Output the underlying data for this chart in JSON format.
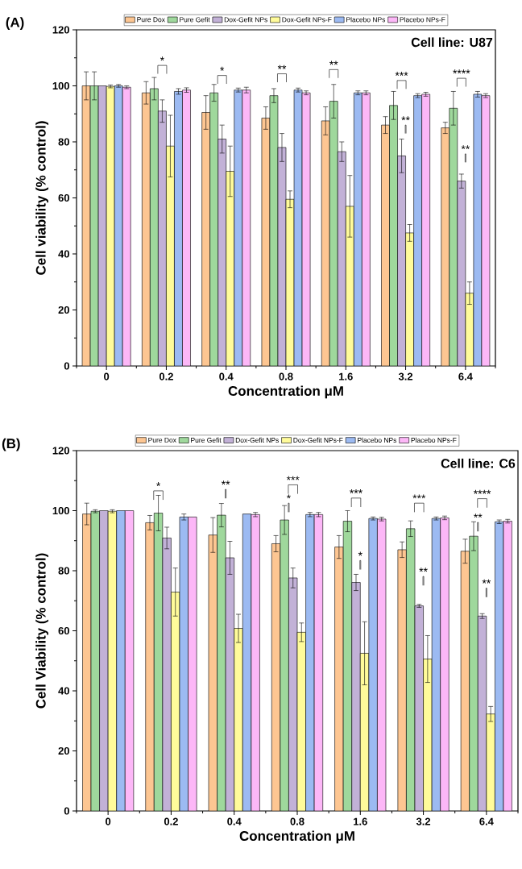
{
  "chart_data": [
    {
      "type": "bar",
      "title": "(A)",
      "subtitle": "Cell line: U87",
      "xlabel": "Concentration μM",
      "ylabel": "Cell viability (% control)",
      "categories": [
        "0",
        "0.2",
        "0.4",
        "0.8",
        "1.6",
        "3.2",
        "6.4"
      ],
      "ylim": [
        0,
        120
      ],
      "yticks": [
        0,
        20,
        40,
        60,
        80,
        100,
        120
      ],
      "legend": "top",
      "series": [
        {
          "name": "Pure Dox",
          "color": "#fdc692",
          "values": [
            100,
            97.5,
            90.5,
            88.5,
            87.5,
            86,
            85
          ],
          "errors": [
            5,
            4,
            6,
            4,
            5,
            3,
            2
          ]
        },
        {
          "name": "Pure Gefit",
          "color": "#9fd89c",
          "values": [
            100,
            99,
            97.5,
            96.5,
            94.5,
            93,
            92
          ],
          "errors": [
            5,
            4,
            3,
            2.5,
            6,
            5,
            6
          ]
        },
        {
          "name": "Dox-Gefit NPs",
          "color": "#c2b1d7",
          "values": [
            100,
            91,
            81,
            78,
            76.5,
            75,
            66
          ],
          "errors": [
            null,
            4,
            5,
            5,
            3.5,
            6,
            2.5
          ]
        },
        {
          "name": "Dox-Gefit NPs-F",
          "color": "#fffb9a",
          "values": [
            99.8,
            78.5,
            69.5,
            59.5,
            57,
            47.5,
            26
          ],
          "errors": [
            0.5,
            11,
            9,
            3,
            11,
            3,
            4
          ]
        },
        {
          "name": "Placebo NPs",
          "color": "#9cbaf2",
          "values": [
            100,
            98,
            98.5,
            98.5,
            97.5,
            96.5,
            97
          ],
          "errors": [
            0.5,
            1,
            0.7,
            0.7,
            0.7,
            0.7,
            1
          ]
        },
        {
          "name": "Placebo NPs-F",
          "color": "#fcb7f7",
          "values": [
            99.5,
            98.5,
            98.5,
            97.5,
            97.5,
            97,
            96.5
          ],
          "errors": [
            0.5,
            0.8,
            1,
            0.7,
            0.7,
            0.7,
            0.7
          ]
        }
      ],
      "annotations": [
        "*",
        "*",
        "**",
        "**",
        "***",
        "**",
        "****",
        "**"
      ]
    },
    {
      "type": "bar",
      "title": "(B)",
      "subtitle": "Cell line: C6",
      "xlabel": "Concentration μM",
      "ylabel": "Cell Viability (% control)",
      "categories": [
        "0",
        "0.2",
        "0.4",
        "0.8",
        "1.6",
        "3.2",
        "6.4"
      ],
      "ylim": [
        0,
        120
      ],
      "yticks": [
        0,
        20,
        40,
        60,
        80,
        100,
        120
      ],
      "legend": "top",
      "series": [
        {
          "name": "Pure Dox",
          "color": "#fdc692",
          "values": [
            98.9,
            96,
            91.9,
            89,
            87.9,
            87,
            86.5
          ],
          "errors": [
            3.6,
            2.4,
            5.8,
            2.7,
            3.8,
            2.6,
            4
          ]
        },
        {
          "name": "Pure Gefit",
          "color": "#9fd89c",
          "values": [
            99.8,
            99.2,
            98.5,
            96.9,
            96.5,
            94,
            91.5
          ],
          "errors": [
            0.5,
            5.9,
            3.9,
            4.8,
            3.5,
            2.6,
            4.8
          ]
        },
        {
          "name": "Dox-Gefit NPs",
          "color": "#c2b1d7",
          "values": [
            100,
            90.9,
            84.3,
            77.6,
            76.1,
            68.3,
            64.9
          ],
          "errors": [
            null,
            3.6,
            5.5,
            3.3,
            2.7,
            0.5,
            0.8
          ]
        },
        {
          "name": "Dox-Gefit NPs-F",
          "color": "#fffb9a",
          "values": [
            99.8,
            72.9,
            60.8,
            59.5,
            52.5,
            50.6,
            32.3
          ],
          "errors": [
            0.5,
            8,
            4.7,
            3.1,
            10.5,
            7.8,
            2.5
          ]
        },
        {
          "name": "Placebo NPs",
          "color": "#9cbaf2",
          "values": [
            100,
            97.9,
            98.9,
            98.7,
            97.4,
            97.4,
            96.3
          ],
          "errors": [
            null,
            1,
            null,
            0.7,
            0.5,
            0.5,
            0.6
          ]
        },
        {
          "name": "Placebo NPs-F",
          "color": "#fcb7f7",
          "values": [
            100,
            97.9,
            98.7,
            98.7,
            97.2,
            97.6,
            96.5
          ],
          "errors": [
            null,
            null,
            0.7,
            0.7,
            0.6,
            0.6,
            0.6
          ]
        }
      ],
      "annotations": [
        "*",
        "**",
        "***",
        "*",
        "***",
        "*",
        "***",
        "**",
        "****",
        "**",
        "**"
      ]
    }
  ]
}
